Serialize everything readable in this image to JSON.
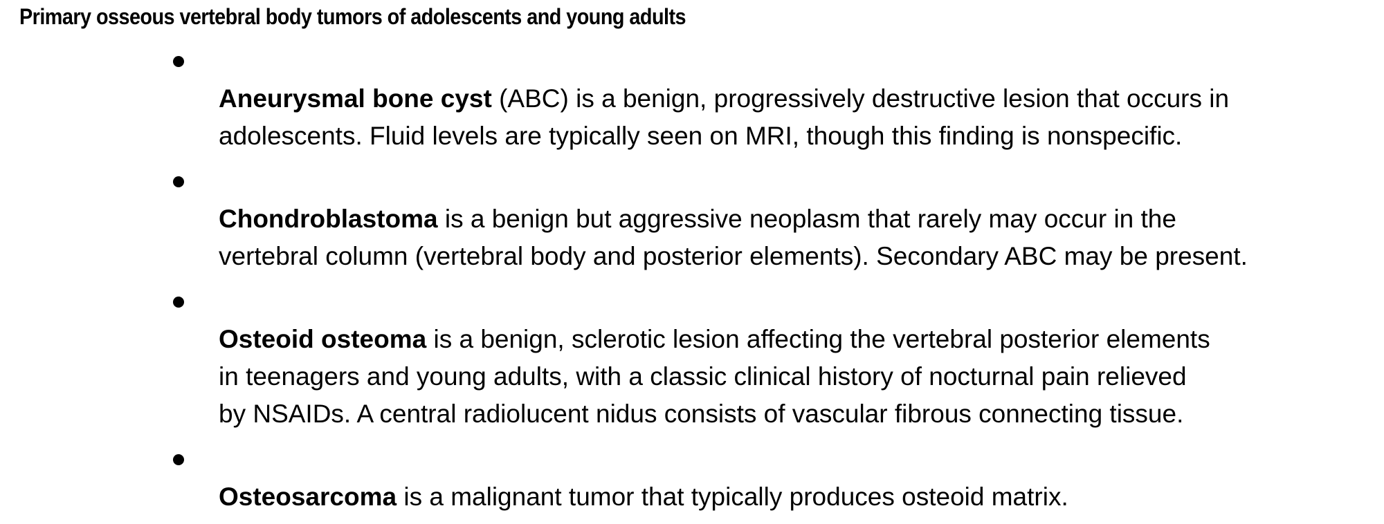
{
  "document": {
    "title": "Primary osseous vertebral body tumors of adolescents and young adults",
    "items": [
      {
        "term": "Aneurysmal bone cyst",
        "text": " (ABC) is a benign, progressively destructive lesion that occurs in\nadolescents. Fluid levels are typically seen on MRI, though this finding is nonspecific."
      },
      {
        "term": "Chondroblastoma",
        "text": " is a benign but aggressive neoplasm that rarely may occur in the\nvertebral column (vertebral body and posterior elements). Secondary ABC may be present."
      },
      {
        "term": "Osteoid osteoma",
        "text": " is a benign, sclerotic lesion affecting the vertebral posterior elements\nin teenagers and young adults, with a classic clinical history of nocturnal pain relieved\nby NSAIDs. A central radiolucent nidus consists of vascular fibrous connecting tissue."
      },
      {
        "term": "Osteosarcoma",
        "text": " is a malignant tumor that typically produces osteoid matrix."
      }
    ]
  }
}
